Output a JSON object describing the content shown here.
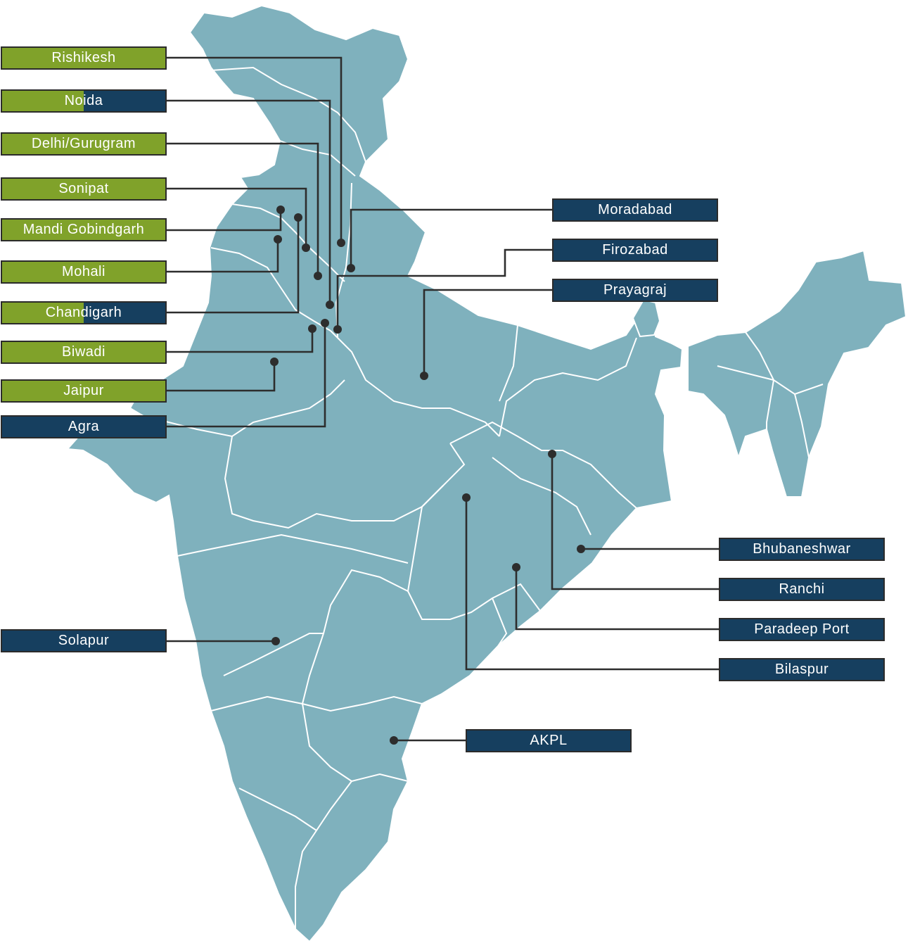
{
  "map": {
    "land_color": "#7fb1bd",
    "border_color": "#ffffff",
    "leader_color": "#2d2d2d"
  },
  "colors": {
    "green": "#80a22a",
    "navy": "#163f5f"
  },
  "locations": [
    {
      "id": "rishikesh",
      "label": "Rishikesh",
      "style": "green"
    },
    {
      "id": "noida",
      "label": "Noida",
      "style": "split"
    },
    {
      "id": "delhi-gurugram",
      "label": "Delhi/Gurugram",
      "style": "green"
    },
    {
      "id": "sonipat",
      "label": "Sonipat",
      "style": "green"
    },
    {
      "id": "mandi-gobindgarh",
      "label": "Mandi Gobindgarh",
      "style": "green"
    },
    {
      "id": "mohali",
      "label": "Mohali",
      "style": "green"
    },
    {
      "id": "chandigarh",
      "label": "Chandigarh",
      "style": "split"
    },
    {
      "id": "biwadi",
      "label": "Biwadi",
      "style": "green"
    },
    {
      "id": "jaipur",
      "label": "Jaipur",
      "style": "green"
    },
    {
      "id": "agra",
      "label": "Agra",
      "style": "navy"
    },
    {
      "id": "solapur",
      "label": "Solapur",
      "style": "navy"
    },
    {
      "id": "moradabad",
      "label": "Moradabad",
      "style": "navy"
    },
    {
      "id": "firozabad",
      "label": "Firozabad",
      "style": "navy"
    },
    {
      "id": "prayagraj",
      "label": "Prayagraj",
      "style": "navy"
    },
    {
      "id": "bhubaneshwar",
      "label": "Bhubaneshwar",
      "style": "navy"
    },
    {
      "id": "ranchi",
      "label": "Ranchi",
      "style": "navy"
    },
    {
      "id": "paradeep-port",
      "label": "Paradeep Port",
      "style": "navy"
    },
    {
      "id": "bilaspur",
      "label": "Bilaspur",
      "style": "navy"
    },
    {
      "id": "akpl",
      "label": "AKPL",
      "style": "navy"
    }
  ]
}
